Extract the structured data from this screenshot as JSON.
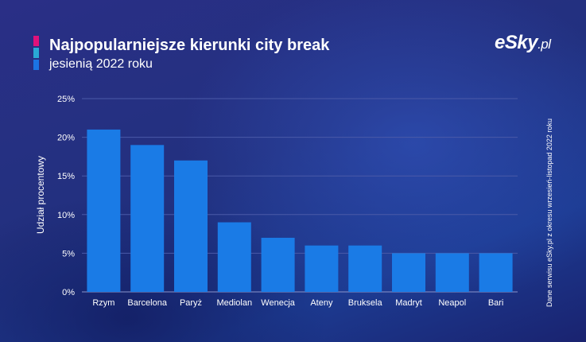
{
  "header": {
    "title": "Najpopularniejsze kierunki city break",
    "subtitle": "jesienią 2022 roku",
    "title_bar_colors": [
      "#e0117a",
      "#29a9d6",
      "#1b74e4"
    ]
  },
  "brand": {
    "logo_main": "eSky",
    "logo_suffix": ".pl"
  },
  "source_note": "Dane serwisu eSky.pl z okresu wrzesień-listopad 2022 roku",
  "colors": {
    "bar": "#1a7be6",
    "grid": "#4a5aa8",
    "text": "#ffffff"
  },
  "chart_data": {
    "type": "bar",
    "title": "Najpopularniejsze kierunki city break",
    "subtitle": "jesienią 2022 roku",
    "xlabel": "",
    "ylabel": "Udział procentowy",
    "categories": [
      "Rzym",
      "Barcelona",
      "Paryż",
      "Mediolan",
      "Wenecja",
      "Ateny",
      "Bruksela",
      "Madryt",
      "Neapol",
      "Bari"
    ],
    "values": [
      21,
      19,
      17,
      9,
      7,
      6,
      6,
      5,
      5,
      5
    ],
    "ylim": [
      0,
      25
    ],
    "y_ticks": [
      0,
      5,
      10,
      15,
      20,
      25
    ],
    "y_tick_labels": [
      "0%",
      "5%",
      "10%",
      "15%",
      "20%",
      "25%"
    ],
    "grid": true,
    "legend": "none"
  }
}
